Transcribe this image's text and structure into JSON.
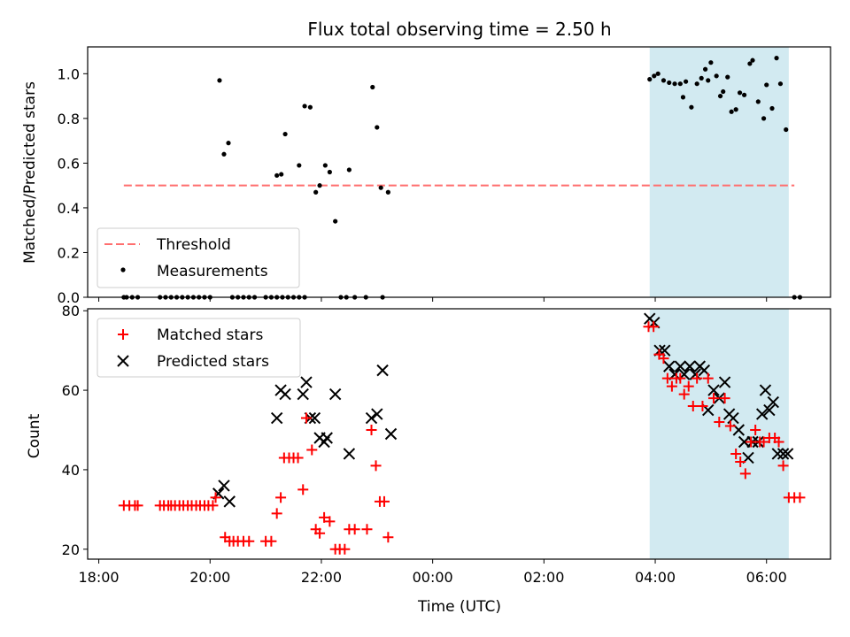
{
  "chart_data": [
    {
      "type": "scatter",
      "title": "Flux total observing time = 2.50 h",
      "xlabel": "",
      "ylabel": "Matched/Predicted stars",
      "ylim": [
        0,
        1.12
      ],
      "yticks": [
        0.0,
        0.2,
        0.4,
        0.6,
        0.8,
        1.0
      ],
      "ytick_labels": [
        "0.0",
        "0.2",
        "0.4",
        "0.6",
        "0.8",
        "1.0"
      ],
      "legend_position": "lower-left",
      "shaded_interval_hours": [
        27.9,
        30.4
      ],
      "threshold": {
        "name": "Threshold",
        "value": 0.5,
        "x_range_hours": [
          18.45,
          30.5
        ],
        "color": "#ff6f6f"
      },
      "series": [
        {
          "name": "Measurements",
          "color": "#000000",
          "points": [
            [
              18.45,
              0
            ],
            [
              18.5,
              0
            ],
            [
              18.6,
              0
            ],
            [
              18.7,
              0
            ],
            [
              19.1,
              0
            ],
            [
              19.2,
              0
            ],
            [
              19.3,
              0
            ],
            [
              19.4,
              0
            ],
            [
              19.5,
              0
            ],
            [
              19.6,
              0
            ],
            [
              19.7,
              0
            ],
            [
              19.8,
              0
            ],
            [
              19.9,
              0
            ],
            [
              20.0,
              0
            ],
            [
              20.17,
              0.97
            ],
            [
              20.25,
              0.64
            ],
            [
              20.33,
              0.69
            ],
            [
              20.4,
              0
            ],
            [
              20.5,
              0
            ],
            [
              20.6,
              0
            ],
            [
              20.7,
              0
            ],
            [
              20.8,
              0
            ],
            [
              21.0,
              0
            ],
            [
              21.1,
              0
            ],
            [
              21.2,
              0
            ],
            [
              21.3,
              0
            ],
            [
              21.4,
              0
            ],
            [
              21.5,
              0
            ],
            [
              21.6,
              0
            ],
            [
              21.7,
              0
            ],
            [
              21.2,
              0.545
            ],
            [
              21.28,
              0.55
            ],
            [
              21.35,
              0.73
            ],
            [
              21.6,
              0.59
            ],
            [
              21.7,
              0.855
            ],
            [
              21.8,
              0.85
            ],
            [
              21.9,
              0.47
            ],
            [
              21.97,
              0.5
            ],
            [
              22.07,
              0.59
            ],
            [
              22.15,
              0.56
            ],
            [
              22.25,
              0.34
            ],
            [
              22.5,
              0.57
            ],
            [
              22.35,
              0
            ],
            [
              22.45,
              0
            ],
            [
              22.6,
              0
            ],
            [
              22.8,
              0
            ],
            [
              23.1,
              0
            ],
            [
              22.92,
              0.94
            ],
            [
              23.0,
              0.76
            ],
            [
              23.07,
              0.49
            ],
            [
              23.2,
              0.47
            ],
            [
              27.9,
              0.975
            ],
            [
              27.98,
              0.99
            ],
            [
              28.05,
              1.0
            ],
            [
              28.15,
              0.97
            ],
            [
              28.25,
              0.96
            ],
            [
              28.35,
              0.955
            ],
            [
              28.45,
              0.955
            ],
            [
              28.5,
              0.895
            ],
            [
              28.55,
              0.965
            ],
            [
              28.65,
              0.85
            ],
            [
              28.75,
              0.955
            ],
            [
              28.83,
              0.98
            ],
            [
              28.9,
              1.02
            ],
            [
              28.95,
              0.97
            ],
            [
              29.0,
              1.05
            ],
            [
              29.1,
              0.99
            ],
            [
              29.17,
              0.9
            ],
            [
              29.22,
              0.92
            ],
            [
              29.3,
              0.985
            ],
            [
              29.37,
              0.83
            ],
            [
              29.45,
              0.84
            ],
            [
              29.52,
              0.915
            ],
            [
              29.6,
              0.905
            ],
            [
              29.7,
              1.045
            ],
            [
              29.75,
              1.06
            ],
            [
              29.85,
              0.875
            ],
            [
              29.95,
              0.8
            ],
            [
              30.0,
              0.95
            ],
            [
              30.1,
              0.845
            ],
            [
              30.18,
              1.07
            ],
            [
              30.25,
              0.955
            ],
            [
              30.35,
              0.75
            ],
            [
              30.5,
              0
            ],
            [
              30.6,
              0
            ]
          ]
        }
      ]
    },
    {
      "type": "scatter",
      "xlabel": "Time (UTC)",
      "ylabel": "Count",
      "ylim": [
        17.5,
        80.5
      ],
      "yticks": [
        20,
        40,
        60,
        80
      ],
      "ytick_labels": [
        "20",
        "40",
        "60",
        "80"
      ],
      "xlim_hours": [
        17.8,
        31.15
      ],
      "xticks_hours": [
        18,
        20,
        22,
        24,
        26,
        28,
        30
      ],
      "xtick_labels": [
        "18:00",
        "20:00",
        "22:00",
        "00:00",
        "02:00",
        "04:00",
        "06:00"
      ],
      "legend_position": "upper-left",
      "shaded_interval_hours": [
        27.9,
        30.4
      ],
      "series": [
        {
          "name": "Matched stars",
          "marker": "plus",
          "color": "#ff0000",
          "points": [
            [
              18.45,
              31
            ],
            [
              18.55,
              31
            ],
            [
              18.65,
              31
            ],
            [
              18.7,
              31
            ],
            [
              19.1,
              31
            ],
            [
              19.17,
              31
            ],
            [
              19.25,
              31
            ],
            [
              19.3,
              31
            ],
            [
              19.37,
              31
            ],
            [
              19.45,
              31
            ],
            [
              19.52,
              31
            ],
            [
              19.6,
              31
            ],
            [
              19.67,
              31
            ],
            [
              19.75,
              31
            ],
            [
              19.82,
              31
            ],
            [
              19.9,
              31
            ],
            [
              19.97,
              31
            ],
            [
              20.05,
              31
            ],
            [
              20.1,
              33
            ],
            [
              20.27,
              23
            ],
            [
              20.35,
              22
            ],
            [
              20.42,
              22
            ],
            [
              20.5,
              22
            ],
            [
              20.6,
              22
            ],
            [
              20.7,
              22
            ],
            [
              21.0,
              22
            ],
            [
              21.1,
              22
            ],
            [
              21.2,
              29
            ],
            [
              21.27,
              33
            ],
            [
              21.33,
              43
            ],
            [
              21.42,
              43
            ],
            [
              21.5,
              43
            ],
            [
              21.58,
              43
            ],
            [
              21.67,
              35
            ],
            [
              21.73,
              53
            ],
            [
              21.83,
              45
            ],
            [
              21.9,
              25
            ],
            [
              21.97,
              24
            ],
            [
              22.05,
              28
            ],
            [
              22.15,
              27
            ],
            [
              22.25,
              20
            ],
            [
              22.33,
              20
            ],
            [
              22.42,
              20
            ],
            [
              22.5,
              25
            ],
            [
              22.6,
              25
            ],
            [
              22.82,
              25
            ],
            [
              22.9,
              50
            ],
            [
              22.98,
              41
            ],
            [
              23.05,
              32
            ],
            [
              23.13,
              32
            ],
            [
              23.2,
              23
            ],
            [
              27.88,
              76
            ],
            [
              27.97,
              76
            ],
            [
              28.07,
              69
            ],
            [
              28.15,
              68
            ],
            [
              28.22,
              63
            ],
            [
              28.3,
              61
            ],
            [
              28.38,
              63
            ],
            [
              28.45,
              63
            ],
            [
              28.52,
              59
            ],
            [
              28.6,
              61
            ],
            [
              28.68,
              56
            ],
            [
              28.75,
              63
            ],
            [
              28.85,
              56
            ],
            [
              28.95,
              63
            ],
            [
              29.05,
              58
            ],
            [
              29.15,
              52
            ],
            [
              29.25,
              58
            ],
            [
              29.35,
              51
            ],
            [
              29.45,
              44
            ],
            [
              29.53,
              42
            ],
            [
              29.62,
              39
            ],
            [
              29.72,
              47
            ],
            [
              29.8,
              50
            ],
            [
              29.88,
              47
            ],
            [
              29.95,
              47
            ],
            [
              30.05,
              48
            ],
            [
              30.15,
              48
            ],
            [
              30.22,
              47
            ],
            [
              30.3,
              41
            ],
            [
              30.4,
              33
            ],
            [
              30.5,
              33
            ],
            [
              30.6,
              33
            ]
          ]
        },
        {
          "name": "Predicted stars",
          "marker": "x",
          "color": "#000000",
          "points": [
            [
              20.15,
              34
            ],
            [
              20.25,
              36
            ],
            [
              20.35,
              32
            ],
            [
              21.2,
              53
            ],
            [
              21.27,
              60
            ],
            [
              21.35,
              59
            ],
            [
              21.67,
              59
            ],
            [
              21.73,
              62
            ],
            [
              21.8,
              53
            ],
            [
              21.88,
              53
            ],
            [
              21.97,
              48
            ],
            [
              22.05,
              47
            ],
            [
              22.1,
              48
            ],
            [
              22.25,
              59
            ],
            [
              22.5,
              44
            ],
            [
              22.9,
              53
            ],
            [
              23.0,
              54
            ],
            [
              23.1,
              65
            ],
            [
              23.25,
              49
            ],
            [
              27.9,
              78
            ],
            [
              27.98,
              77
            ],
            [
              28.08,
              70
            ],
            [
              28.17,
              70
            ],
            [
              28.25,
              66
            ],
            [
              28.35,
              64
            ],
            [
              28.45,
              66
            ],
            [
              28.52,
              64
            ],
            [
              28.62,
              66
            ],
            [
              28.72,
              64
            ],
            [
              28.8,
              66
            ],
            [
              28.88,
              65
            ],
            [
              28.95,
              55
            ],
            [
              29.05,
              60
            ],
            [
              29.15,
              58
            ],
            [
              29.25,
              62
            ],
            [
              29.33,
              54
            ],
            [
              29.4,
              53
            ],
            [
              29.5,
              50
            ],
            [
              29.6,
              47
            ],
            [
              29.67,
              43
            ],
            [
              29.75,
              47
            ],
            [
              29.85,
              47
            ],
            [
              29.92,
              54
            ],
            [
              29.98,
              60
            ],
            [
              30.05,
              55
            ],
            [
              30.12,
              57
            ],
            [
              30.2,
              44
            ],
            [
              30.3,
              44
            ],
            [
              30.38,
              44
            ]
          ]
        }
      ]
    }
  ]
}
